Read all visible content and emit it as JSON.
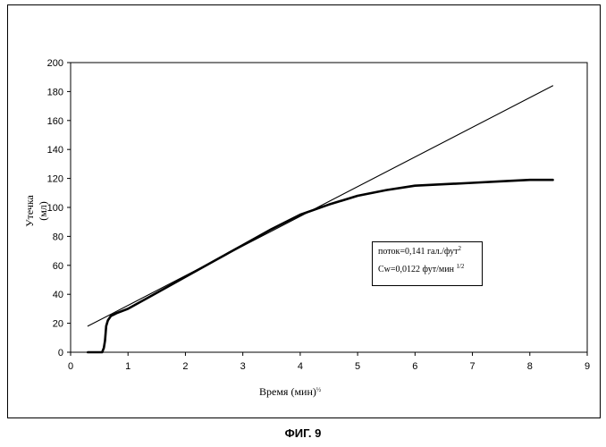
{
  "chart_data": {
    "type": "line",
    "title": "",
    "xlabel": "Время (мин)",
    "xlabel_sup": "½",
    "ylabel": "Утечка (мл)",
    "xlim": [
      0,
      9
    ],
    "ylim": [
      0,
      200
    ],
    "x_ticks": [
      0,
      1,
      2,
      3,
      4,
      5,
      6,
      7,
      8,
      9
    ],
    "y_ticks": [
      0,
      20,
      40,
      60,
      80,
      100,
      120,
      140,
      160,
      180,
      200
    ],
    "grid": false,
    "legend": "none",
    "series": [
      {
        "style": "thick",
        "x": [
          0.3,
          0.5,
          0.55,
          0.58,
          0.6,
          0.62,
          0.65,
          0.7,
          0.8,
          1.0,
          1.5,
          2.0,
          2.5,
          3.0,
          3.5,
          4.0,
          4.5,
          5.0,
          5.5,
          6.0,
          6.5,
          7.0,
          7.5,
          8.0,
          8.4
        ],
        "y": [
          0,
          0,
          0,
          3,
          8,
          18,
          22,
          25,
          27,
          30,
          41,
          52,
          63,
          74,
          85,
          95,
          102,
          108,
          112,
          115,
          116,
          117,
          118,
          119,
          119
        ]
      },
      {
        "style": "thin",
        "x": [
          0.3,
          8.4
        ],
        "y": [
          18,
          184
        ]
      }
    ]
  },
  "annotation": {
    "line1": "поток=0,141 гал./фут",
    "line1_sup": "2",
    "line2": "Cw=0,0122 фут/мин ",
    "line2_sup": "1/2"
  },
  "caption": "ФИГ. 9"
}
